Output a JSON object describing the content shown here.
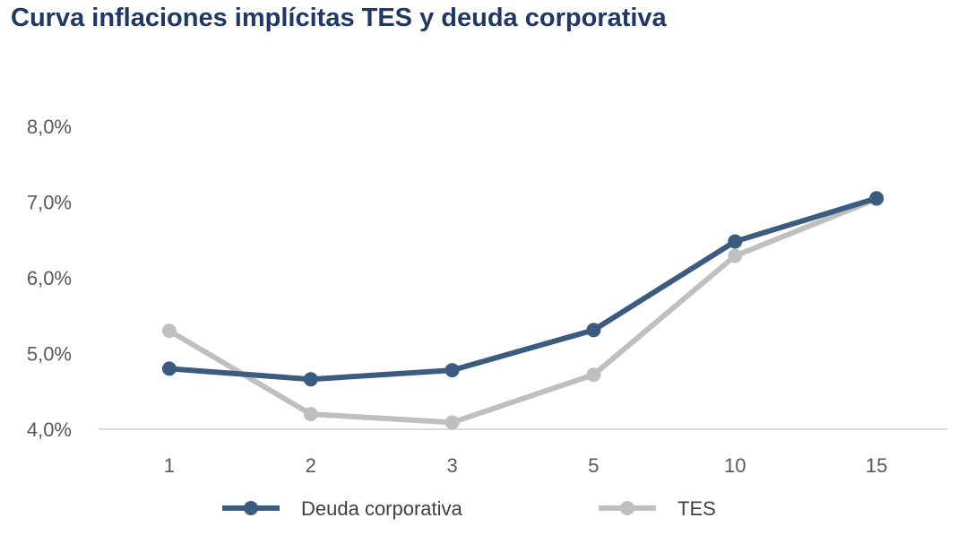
{
  "chart_data": {
    "type": "line",
    "title": "Curva inflaciones implícitas TES y deuda corporativa",
    "xlabel": "",
    "ylabel": "",
    "categories": [
      "1",
      "2",
      "3",
      "5",
      "10",
      "15"
    ],
    "ylim": [
      4.0,
      8.0
    ],
    "yticks": [
      "4,0%",
      "5,0%",
      "6,0%",
      "7,0%",
      "8,0%"
    ],
    "ytick_values": [
      4.0,
      5.0,
      6.0,
      7.0,
      8.0
    ],
    "grid": false,
    "legend_position": "bottom",
    "series": [
      {
        "name": "Deuda corporativa",
        "color": "#3b5b7f",
        "values": [
          4.8,
          4.66,
          4.78,
          5.31,
          6.48,
          7.05
        ]
      },
      {
        "name": "TES",
        "color": "#bfbfbf",
        "values": [
          5.3,
          4.2,
          4.09,
          4.72,
          6.29,
          7.04
        ]
      }
    ]
  }
}
